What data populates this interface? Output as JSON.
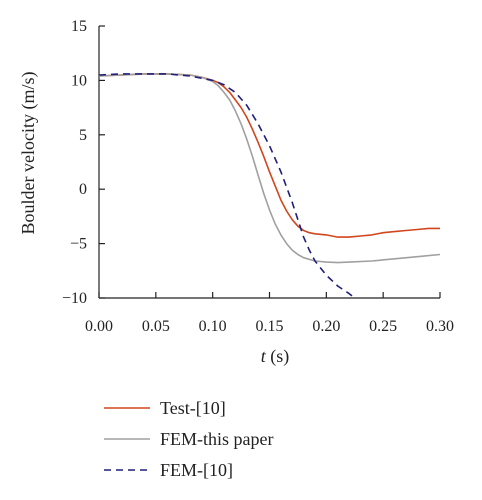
{
  "chart_data": {
    "type": "line",
    "title": "",
    "xlabel_var": "t",
    "xlabel_unit": " (s)",
    "ylabel": "Boulder velocity (m/s)",
    "xlim": [
      0.0,
      0.3
    ],
    "ylim": [
      -10,
      15
    ],
    "xticks": [
      0.0,
      0.05,
      0.1,
      0.15,
      0.2,
      0.25,
      0.3
    ],
    "xtick_labels": [
      "0.00",
      "0.05",
      "0.10",
      "0.15",
      "0.20",
      "0.25",
      "0.30"
    ],
    "yticks": [
      -10,
      -5,
      0,
      5,
      10,
      15
    ],
    "ytick_labels": [
      "−10",
      "−5",
      "0",
      "5",
      "10",
      "15"
    ],
    "grid": false,
    "legend_position": "below",
    "colors": {
      "test": "#d2461e",
      "fem_this": "#a0a0a0",
      "fem_ref": "#1f1f7a"
    },
    "series": [
      {
        "name": "Test-[10]",
        "style": "solid",
        "color": "#d2461e",
        "x": [
          0.0,
          0.02,
          0.04,
          0.06,
          0.08,
          0.09,
          0.1,
          0.105,
          0.11,
          0.115,
          0.12,
          0.125,
          0.13,
          0.135,
          0.14,
          0.145,
          0.15,
          0.155,
          0.16,
          0.165,
          0.17,
          0.175,
          0.18,
          0.185,
          0.19,
          0.2,
          0.21,
          0.22,
          0.23,
          0.24,
          0.25,
          0.26,
          0.27,
          0.28,
          0.29,
          0.3
        ],
        "y": [
          10.4,
          10.5,
          10.6,
          10.6,
          10.5,
          10.3,
          10.0,
          9.8,
          9.4,
          8.9,
          8.2,
          7.5,
          6.6,
          5.5,
          4.3,
          3.0,
          1.6,
          0.3,
          -1.0,
          -2.0,
          -2.8,
          -3.4,
          -3.8,
          -4.0,
          -4.1,
          -4.2,
          -4.4,
          -4.4,
          -4.3,
          -4.2,
          -4.0,
          -3.9,
          -3.8,
          -3.7,
          -3.6,
          -3.6
        ]
      },
      {
        "name": "FEM-this paper",
        "style": "solid",
        "color": "#a0a0a0",
        "x": [
          0.0,
          0.02,
          0.04,
          0.06,
          0.08,
          0.09,
          0.1,
          0.105,
          0.11,
          0.115,
          0.12,
          0.125,
          0.13,
          0.135,
          0.14,
          0.145,
          0.15,
          0.155,
          0.16,
          0.165,
          0.17,
          0.175,
          0.18,
          0.19,
          0.2,
          0.21,
          0.22,
          0.24,
          0.26,
          0.28,
          0.3
        ],
        "y": [
          10.4,
          10.5,
          10.6,
          10.6,
          10.5,
          10.3,
          9.9,
          9.5,
          8.9,
          8.2,
          7.2,
          6.0,
          4.6,
          3.0,
          1.3,
          -0.4,
          -1.9,
          -3.2,
          -4.2,
          -5.0,
          -5.6,
          -6.0,
          -6.3,
          -6.6,
          -6.7,
          -6.75,
          -6.7,
          -6.6,
          -6.4,
          -6.2,
          -6.0
        ]
      },
      {
        "name": "FEM-[10]",
        "style": "dashed",
        "color": "#1f1f7a",
        "x": [
          0.0,
          0.02,
          0.04,
          0.06,
          0.08,
          0.1,
          0.11,
          0.12,
          0.13,
          0.14,
          0.15,
          0.16,
          0.17,
          0.175,
          0.18,
          0.185,
          0.19,
          0.2,
          0.21,
          0.22,
          0.225
        ],
        "y": [
          10.5,
          10.6,
          10.6,
          10.6,
          10.4,
          10.0,
          9.6,
          8.9,
          7.7,
          6.0,
          4.0,
          1.6,
          -1.2,
          -2.8,
          -4.4,
          -5.6,
          -6.6,
          -7.9,
          -8.9,
          -9.6,
          -10.0
        ]
      }
    ]
  }
}
